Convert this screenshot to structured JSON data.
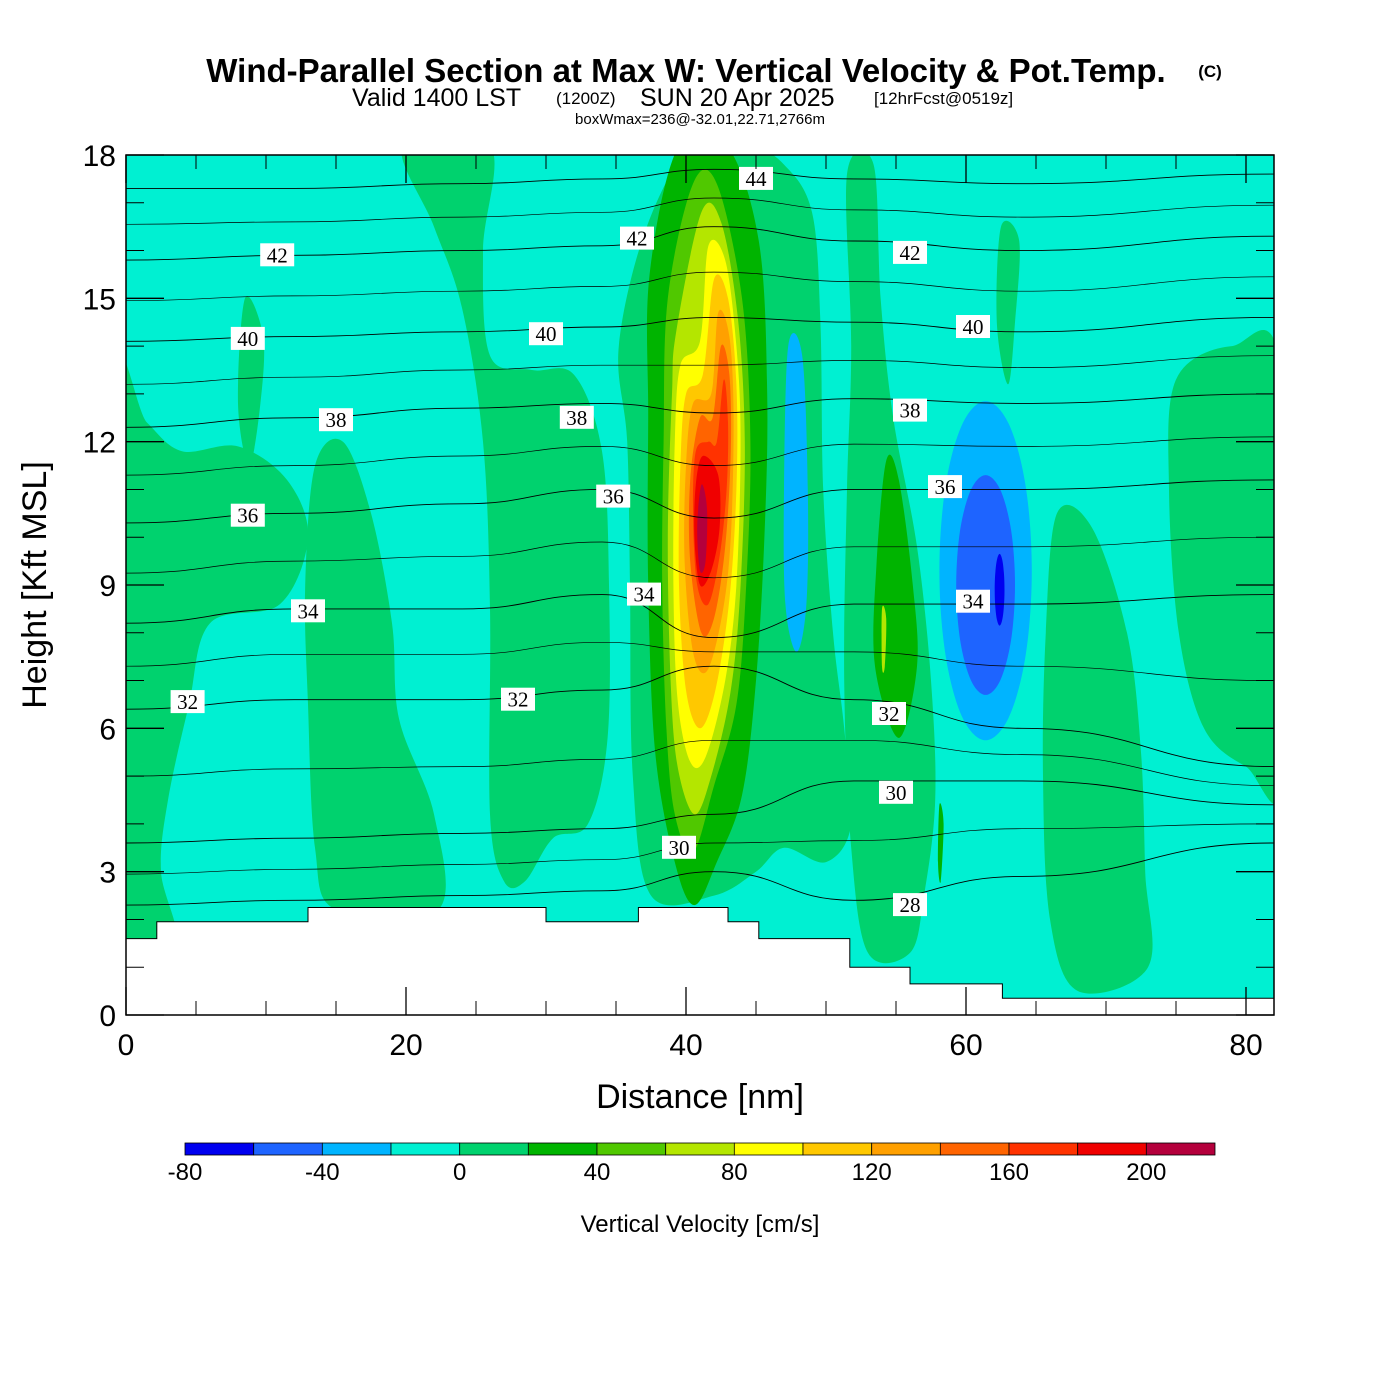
{
  "title": {
    "main": "Wind-Parallel Section at Max W: Vertical Velocity & Pot.Temp.",
    "copyright": "(C)",
    "valid_prefix": "Valid 1400 LST",
    "valid_utc": "(1200Z)",
    "valid_date": "SUN 20 Apr 2025",
    "forecast": "[12hrFcst@0519z]",
    "subtitle": "boxWmax=236@-32.01,22.71,2766m"
  },
  "chart_data": {
    "type": "heatmap",
    "title": "Wind-Parallel Section at Max W: Vertical Velocity & Pot.Temp.",
    "xlabel": "Distance [nm]",
    "ylabel": "Height [Kft MSL]",
    "xlim": [
      0,
      82
    ],
    "ylim": [
      0,
      18
    ],
    "x_ticks": [
      0,
      20,
      40,
      60,
      80
    ],
    "y_ticks": [
      0,
      3,
      6,
      9,
      12,
      15,
      18
    ],
    "colorbar": {
      "label": "Vertical Velocity [cm/s]",
      "levels": [
        -80,
        -60,
        -40,
        -20,
        0,
        20,
        40,
        60,
        80,
        100,
        120,
        140,
        160,
        180,
        200,
        220
      ],
      "tick_labels": [
        "-80",
        "-40",
        "0",
        "40",
        "80",
        "120",
        "160",
        "200"
      ],
      "colors": [
        "#0000f0",
        "#1e64ff",
        "#00b4ff",
        "#00f0d2",
        "#00d26e",
        "#00b400",
        "#50c800",
        "#b4e600",
        "#ffff00",
        "#ffc800",
        "#ffa000",
        "#ff6400",
        "#ff3200",
        "#f00000",
        "#b4003c"
      ]
    },
    "velocity_features": [
      {
        "name": "main updraft",
        "x_center": 41,
        "y_bottom": 2.8,
        "y_top": 18,
        "max_value": 236
      },
      {
        "name": "downdraft east",
        "x_center": 47.5,
        "y_bottom": 7.8,
        "y_top": 14,
        "min_value": -30
      },
      {
        "name": "updraft small",
        "x_center": 54.5,
        "y_bottom": 6,
        "y_top": 11.8,
        "max_value": 45
      },
      {
        "name": "downdraft strong",
        "x_center": 61.5,
        "y_bottom": 6.2,
        "y_top": 13,
        "min_value": -70
      }
    ],
    "terrain_kft": [
      {
        "x": 0,
        "y": 1.6
      },
      {
        "x": 2.2,
        "y": 1.6
      },
      {
        "x": 2.2,
        "y": 1.95
      },
      {
        "x": 13,
        "y": 1.95
      },
      {
        "x": 13,
        "y": 2.25
      },
      {
        "x": 30,
        "y": 2.25
      },
      {
        "x": 30,
        "y": 1.95
      },
      {
        "x": 36.6,
        "y": 1.95
      },
      {
        "x": 36.6,
        "y": 2.25
      },
      {
        "x": 43,
        "y": 2.25
      },
      {
        "x": 43,
        "y": 1.95
      },
      {
        "x": 45.2,
        "y": 1.95
      },
      {
        "x": 45.2,
        "y": 1.6
      },
      {
        "x": 51.7,
        "y": 1.6
      },
      {
        "x": 51.7,
        "y": 1.0
      },
      {
        "x": 56,
        "y": 1.0
      },
      {
        "x": 56,
        "y": 0.65
      },
      {
        "x": 62.6,
        "y": 0.65
      },
      {
        "x": 62.6,
        "y": 0.35
      },
      {
        "x": 82,
        "y": 0.35
      }
    ],
    "theta_isentropes": [
      {
        "value": 28,
        "y": [
          2.3,
          2.4,
          2.5,
          2.6,
          3.0,
          2.4,
          2.9,
          3.6
        ]
      },
      {
        "value": 30,
        "y": [
          3.6,
          3.7,
          3.8,
          3.9,
          4.2,
          4.9,
          4.9,
          4.4
        ]
      },
      {
        "value": 32,
        "y": [
          6.4,
          6.6,
          6.6,
          6.8,
          7.3,
          6.6,
          6.0,
          5.2
        ]
      },
      {
        "value": 34,
        "y": [
          8.2,
          8.5,
          8.5,
          8.8,
          7.9,
          8.6,
          8.6,
          8.8
        ]
      },
      {
        "value": 36,
        "y": [
          10.3,
          10.5,
          10.7,
          11.0,
          10.4,
          11.0,
          11.0,
          11.2
        ]
      },
      {
        "value": 38,
        "y": [
          12.3,
          12.5,
          12.7,
          12.8,
          12.6,
          12.9,
          12.8,
          13.0
        ]
      },
      {
        "value": 40,
        "y": [
          14.1,
          14.2,
          14.3,
          14.4,
          14.6,
          14.5,
          14.3,
          14.6
        ]
      },
      {
        "value": 42,
        "y": [
          15.8,
          15.9,
          16.0,
          16.1,
          16.5,
          16.2,
          16.0,
          16.3
        ]
      },
      {
        "value": 44,
        "y": [
          17.3,
          17.3,
          17.4,
          17.5,
          17.7,
          17.5,
          17.4,
          17.6
        ]
      }
    ],
    "contour_labels": [
      {
        "text": "42",
        "x": 10.8,
        "y": 15.9
      },
      {
        "text": "42",
        "x": 36.5,
        "y": 16.25
      },
      {
        "text": "44",
        "x": 45,
        "y": 17.5
      },
      {
        "text": "42",
        "x": 56,
        "y": 15.95
      },
      {
        "text": "40",
        "x": 8.7,
        "y": 14.15
      },
      {
        "text": "40",
        "x": 30,
        "y": 14.25
      },
      {
        "text": "40",
        "x": 60.5,
        "y": 14.4
      },
      {
        "text": "38",
        "x": 15,
        "y": 12.45
      },
      {
        "text": "38",
        "x": 32.2,
        "y": 12.5
      },
      {
        "text": "38",
        "x": 56,
        "y": 12.65
      },
      {
        "text": "36",
        "x": 8.7,
        "y": 10.45
      },
      {
        "text": "36",
        "x": 34.8,
        "y": 10.85
      },
      {
        "text": "36",
        "x": 58.5,
        "y": 11.05
      },
      {
        "text": "34",
        "x": 13,
        "y": 8.45
      },
      {
        "text": "34",
        "x": 37,
        "y": 8.8
      },
      {
        "text": "34",
        "x": 60.5,
        "y": 8.65
      },
      {
        "text": "32",
        "x": 4.4,
        "y": 6.55
      },
      {
        "text": "32",
        "x": 28,
        "y": 6.6
      },
      {
        "text": "32",
        "x": 54.5,
        "y": 6.3
      },
      {
        "text": "30",
        "x": 39.5,
        "y": 3.5
      },
      {
        "text": "30",
        "x": 55,
        "y": 4.65
      },
      {
        "text": "28",
        "x": 56,
        "y": 2.3
      }
    ]
  }
}
